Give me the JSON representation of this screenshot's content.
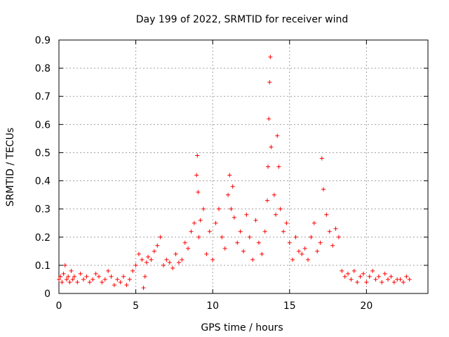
{
  "chart_data": {
    "type": "scatter",
    "title": "Day 199 of 2022, SRMTID for receiver wind",
    "xlabel": "GPS time / hours",
    "ylabel": "SRMTID / TECUs",
    "xlim": [
      0,
      24
    ],
    "ylim": [
      0,
      0.9
    ],
    "x_ticks": [
      "0",
      "5",
      "10",
      "15",
      "20"
    ],
    "y_ticks": [
      "0",
      "0.1",
      "0.2",
      "0.3",
      "0.4",
      "0.5",
      "0.6",
      "0.7",
      "0.8",
      "0.9"
    ],
    "grid": true,
    "marker": "+",
    "series": [
      {
        "name": "SRMTID",
        "color": "#ff0000",
        "x": [
          0.0,
          0.1,
          0.2,
          0.3,
          0.4,
          0.5,
          0.6,
          0.7,
          0.8,
          0.9,
          1.0,
          1.2,
          1.4,
          1.6,
          1.8,
          2.0,
          2.2,
          2.4,
          2.6,
          2.8,
          3.0,
          3.2,
          3.4,
          3.6,
          3.8,
          4.0,
          4.2,
          4.4,
          4.6,
          4.8,
          5.0,
          5.2,
          5.4,
          5.5,
          5.6,
          5.7,
          5.8,
          6.0,
          6.2,
          6.4,
          6.6,
          6.8,
          7.0,
          7.2,
          7.4,
          7.6,
          7.8,
          8.0,
          8.2,
          8.4,
          8.6,
          8.8,
          8.95,
          9.0,
          9.05,
          9.1,
          9.2,
          9.4,
          9.6,
          9.8,
          10.0,
          10.2,
          10.4,
          10.6,
          10.8,
          11.0,
          11.1,
          11.2,
          11.3,
          11.4,
          11.6,
          11.8,
          12.0,
          12.2,
          12.4,
          12.6,
          12.8,
          13.0,
          13.2,
          13.4,
          13.55,
          13.6,
          13.65,
          13.7,
          13.75,
          13.8,
          14.0,
          14.1,
          14.2,
          14.3,
          14.4,
          14.6,
          14.8,
          15.0,
          15.2,
          15.4,
          15.6,
          15.8,
          16.0,
          16.2,
          16.4,
          16.6,
          16.8,
          17.0,
          17.1,
          17.2,
          17.4,
          17.6,
          17.8,
          18.0,
          18.2,
          18.4,
          18.6,
          18.8,
          19.0,
          19.2,
          19.4,
          19.6,
          19.8,
          20.0,
          20.2,
          20.4,
          20.6,
          20.8,
          21.0,
          21.2,
          21.4,
          21.6,
          21.8,
          22.0,
          22.2,
          22.4,
          22.6,
          22.8
        ],
        "y": [
          0.05,
          0.06,
          0.04,
          0.07,
          0.1,
          0.05,
          0.06,
          0.04,
          0.08,
          0.05,
          0.06,
          0.04,
          0.07,
          0.05,
          0.06,
          0.04,
          0.05,
          0.07,
          0.06,
          0.04,
          0.05,
          0.08,
          0.06,
          0.03,
          0.05,
          0.04,
          0.06,
          0.03,
          0.05,
          0.08,
          0.1,
          0.14,
          0.12,
          0.02,
          0.06,
          0.11,
          0.13,
          0.12,
          0.15,
          0.17,
          0.2,
          0.1,
          0.12,
          0.11,
          0.09,
          0.14,
          0.11,
          0.12,
          0.18,
          0.16,
          0.22,
          0.25,
          0.42,
          0.49,
          0.36,
          0.2,
          0.26,
          0.3,
          0.14,
          0.22,
          0.12,
          0.25,
          0.3,
          0.2,
          0.16,
          0.35,
          0.42,
          0.3,
          0.38,
          0.27,
          0.18,
          0.22,
          0.15,
          0.28,
          0.2,
          0.12,
          0.26,
          0.18,
          0.14,
          0.22,
          0.33,
          0.45,
          0.62,
          0.75,
          0.84,
          0.52,
          0.35,
          0.28,
          0.56,
          0.45,
          0.3,
          0.22,
          0.25,
          0.18,
          0.12,
          0.2,
          0.15,
          0.14,
          0.16,
          0.12,
          0.2,
          0.25,
          0.15,
          0.18,
          0.48,
          0.37,
          0.28,
          0.22,
          0.17,
          0.23,
          0.2,
          0.08,
          0.06,
          0.07,
          0.05,
          0.08,
          0.04,
          0.06,
          0.07,
          0.04,
          0.06,
          0.08,
          0.05,
          0.06,
          0.04,
          0.07,
          0.05,
          0.06,
          0.04,
          0.05,
          0.05,
          0.04,
          0.06,
          0.05
        ]
      }
    ]
  }
}
